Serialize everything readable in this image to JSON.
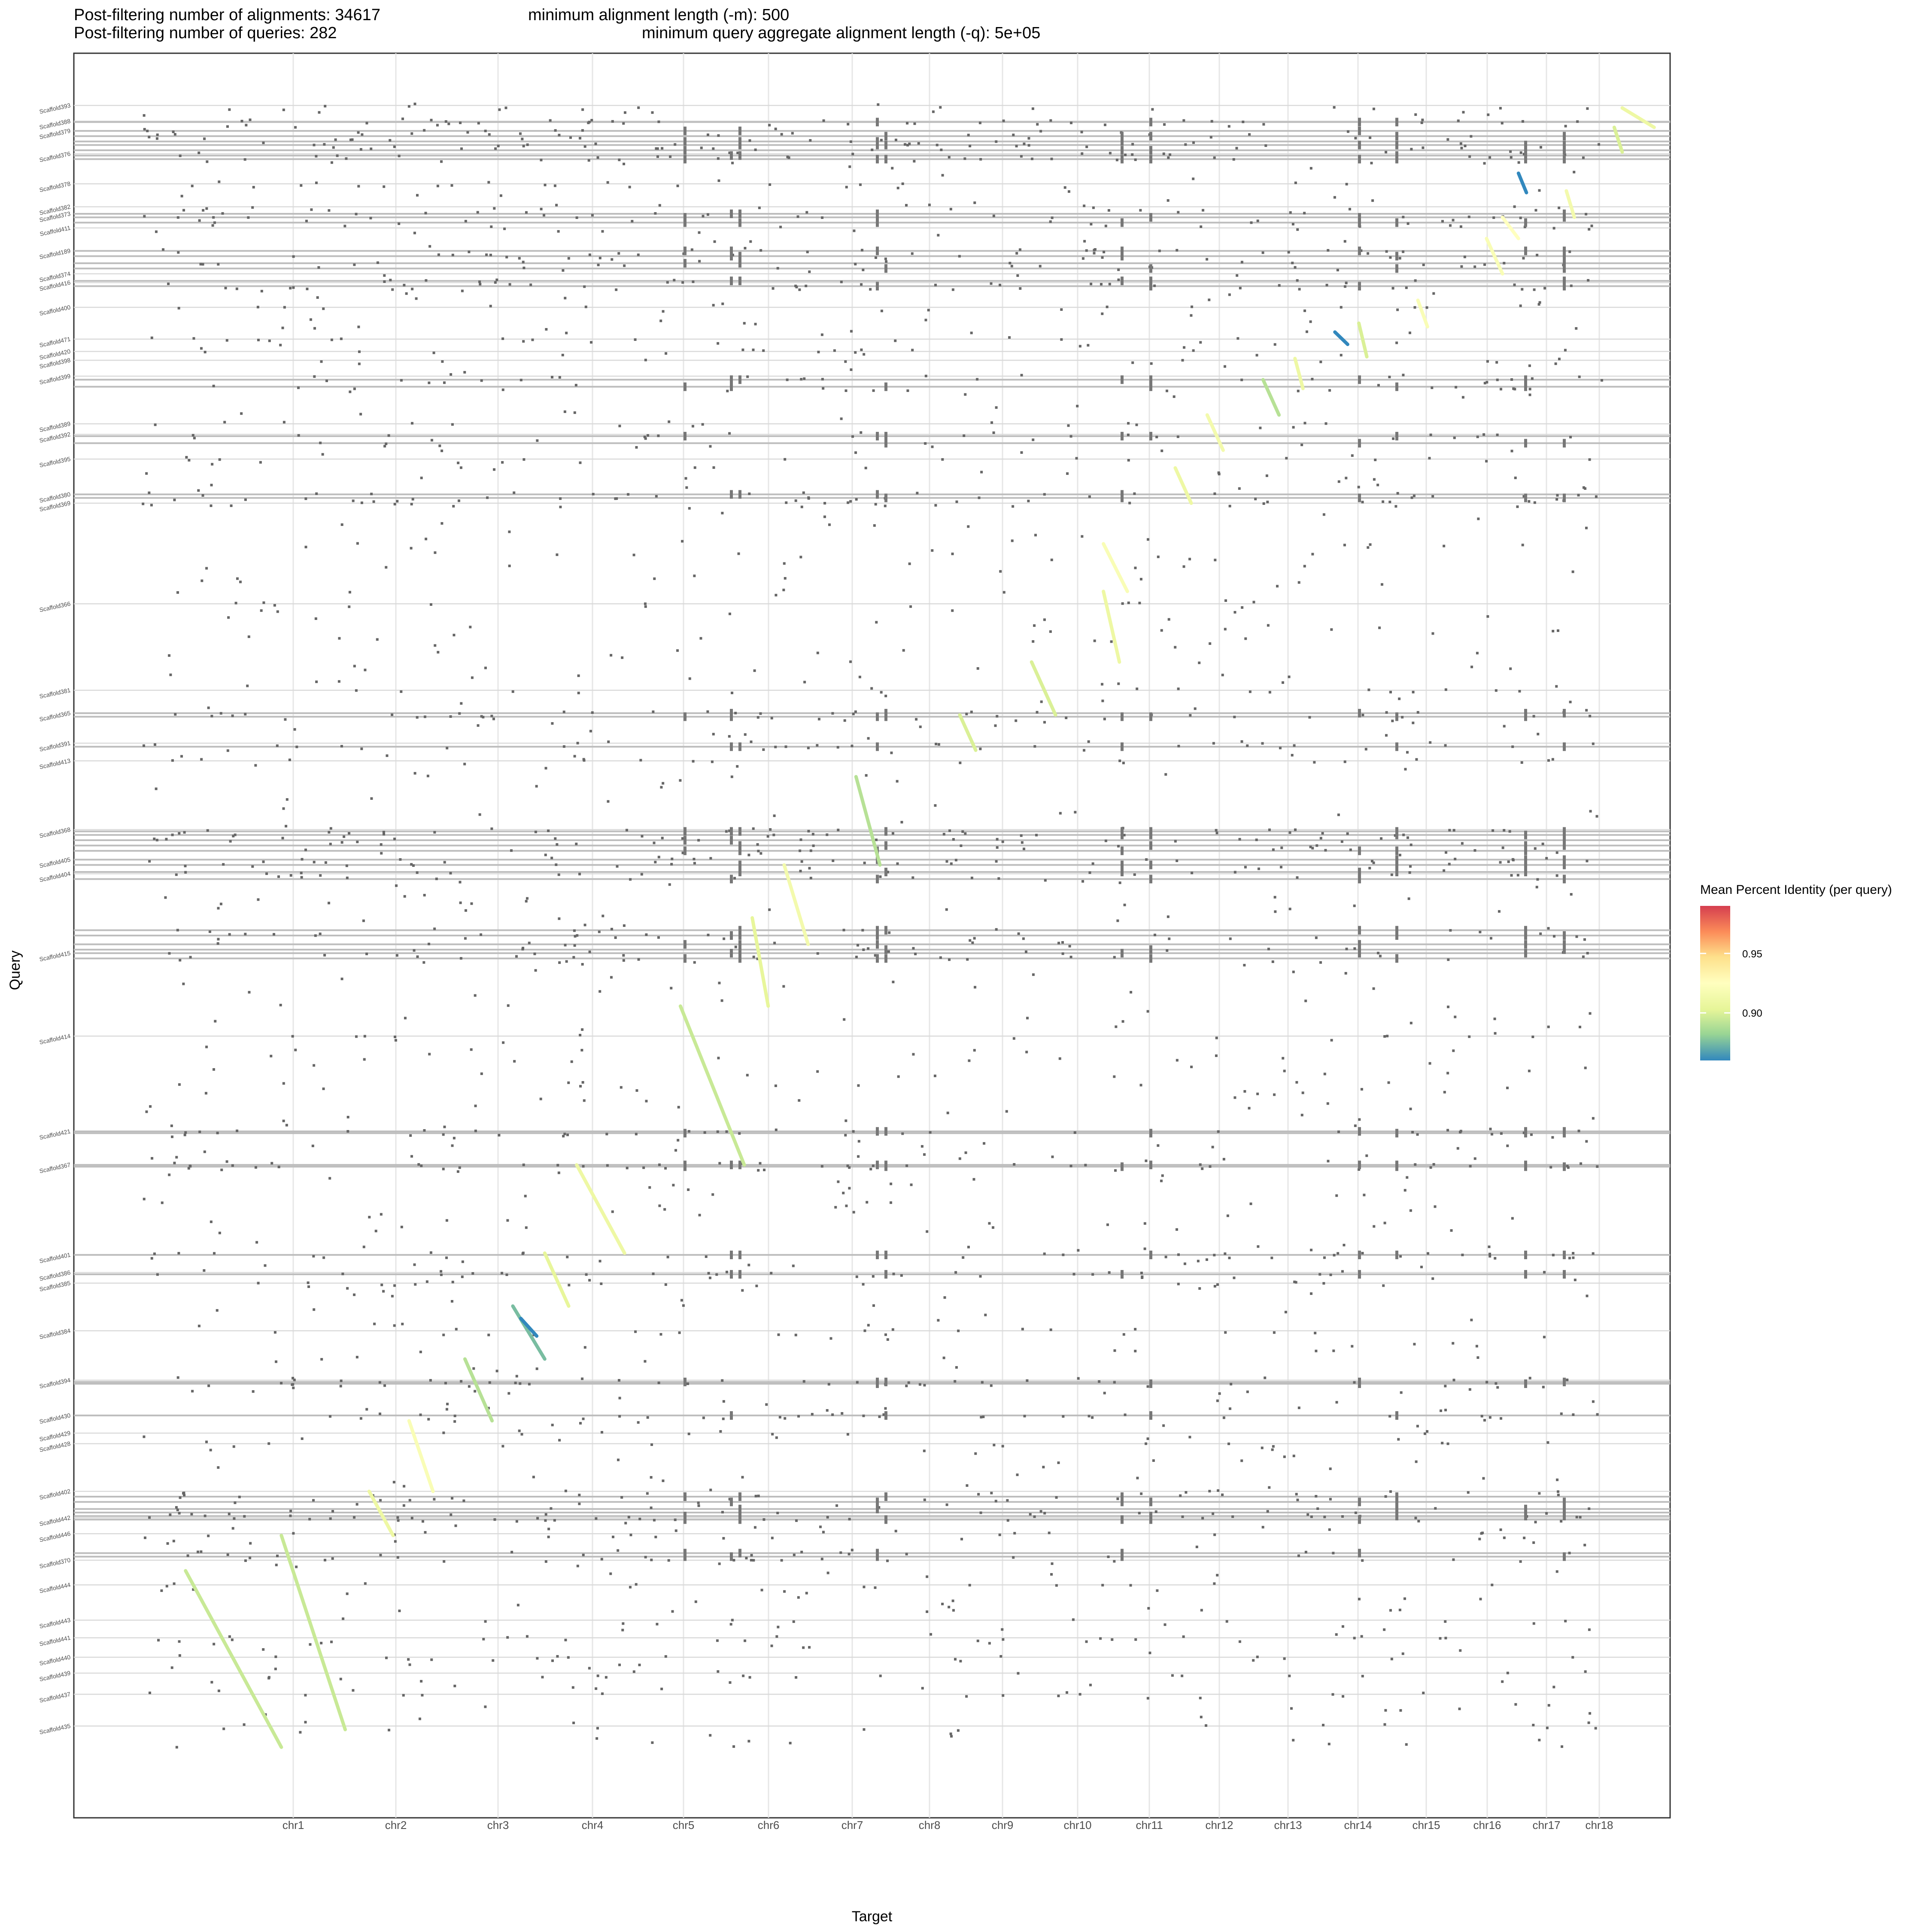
{
  "header": {
    "alignments": "Post-filtering number of alignments: 34617",
    "queries": "Post-filtering number of queries: 282",
    "min_len": "minimum alignment length (-m): 500",
    "min_agg": "minimum query aggregate alignment length (-q): 5e+05"
  },
  "chart_data": {
    "type": "scatter",
    "xlabel": "Target",
    "ylabel": "Query",
    "x_categories": [
      "chr1",
      "chr2",
      "chr3",
      "chr4",
      "chr5",
      "chr6",
      "chr7",
      "chr8",
      "chr9",
      "chr10",
      "chr11",
      "chr12",
      "chr13",
      "chr14",
      "chr15",
      "chr16",
      "chr17",
      "chr18"
    ],
    "y_ticks": [
      {
        "label": "Scaffold393",
        "y": 0.0296
      },
      {
        "label": "Scaffold388",
        "y": 0.0385
      },
      {
        "label": "Scaffold379",
        "y": 0.044
      },
      {
        "label": "Scaffold376",
        "y": 0.057
      },
      {
        "label": "Scaffold378",
        "y": 0.074
      },
      {
        "label": "Scaffold382",
        "y": 0.087
      },
      {
        "label": "Scaffold373",
        "y": 0.091
      },
      {
        "label": "Scaffold411",
        "y": 0.099
      },
      {
        "label": "Scaffold189",
        "y": 0.112
      },
      {
        "label": "Scaffold374",
        "y": 0.125
      },
      {
        "label": "Scaffold416",
        "y": 0.13
      },
      {
        "label": "Scaffold400",
        "y": 0.144
      },
      {
        "label": "Scaffold471",
        "y": 0.162
      },
      {
        "label": "Scaffold420",
        "y": 0.169
      },
      {
        "label": "Scaffold398",
        "y": 0.174
      },
      {
        "label": "Scaffold399",
        "y": 0.183
      },
      {
        "label": "Scaffold389",
        "y": 0.21
      },
      {
        "label": "Scaffold392",
        "y": 0.216
      },
      {
        "label": "Scaffold395",
        "y": 0.23
      },
      {
        "label": "Scaffold380",
        "y": 0.25
      },
      {
        "label": "Scaffold369",
        "y": 0.255
      },
      {
        "label": "Scaffold366",
        "y": 0.312
      },
      {
        "label": "Scaffold381",
        "y": 0.361
      },
      {
        "label": "Scaffold365",
        "y": 0.374
      },
      {
        "label": "Scaffold391",
        "y": 0.391
      },
      {
        "label": "Scaffold413",
        "y": 0.401
      },
      {
        "label": "Scaffold368",
        "y": 0.44
      },
      {
        "label": "Scaffold405",
        "y": 0.457
      },
      {
        "label": "Scaffold404",
        "y": 0.465
      },
      {
        "label": "Scaffold415",
        "y": 0.51
      },
      {
        "label": "Scaffold414",
        "y": 0.557
      },
      {
        "label": "Scaffold421",
        "y": 0.611
      },
      {
        "label": "Scaffold367",
        "y": 0.63
      },
      {
        "label": "Scaffold401",
        "y": 0.681
      },
      {
        "label": "Scaffold386",
        "y": 0.691
      },
      {
        "label": "Scaffold385",
        "y": 0.697
      },
      {
        "label": "Scaffold384",
        "y": 0.724
      },
      {
        "label": "Scaffold394",
        "y": 0.752
      },
      {
        "label": "Scaffold430",
        "y": 0.772
      },
      {
        "label": "Scaffold429",
        "y": 0.782
      },
      {
        "label": "Scaffold428",
        "y": 0.788
      },
      {
        "label": "Scaffold402",
        "y": 0.815
      },
      {
        "label": "Scaffold442",
        "y": 0.83
      },
      {
        "label": "Scaffold446",
        "y": 0.839
      },
      {
        "label": "Scaffold370",
        "y": 0.854
      },
      {
        "label": "Scaffold444",
        "y": 0.868
      },
      {
        "label": "Scaffold443",
        "y": 0.888
      },
      {
        "label": "Scaffold441",
        "y": 0.898
      },
      {
        "label": "Scaffold440",
        "y": 0.909
      },
      {
        "label": "Scaffold439",
        "y": 0.918
      },
      {
        "label": "Scaffold437",
        "y": 0.93
      },
      {
        "label": "Scaffold435",
        "y": 0.948
      }
    ],
    "dense_rows": [
      0.039,
      0.044,
      0.047,
      0.05,
      0.052,
      0.055,
      0.058,
      0.06,
      0.091,
      0.093,
      0.096,
      0.112,
      0.115,
      0.119,
      0.122,
      0.129,
      0.132,
      0.185,
      0.189,
      0.217,
      0.221,
      0.25,
      0.252,
      0.374,
      0.376,
      0.393,
      0.441,
      0.443,
      0.446,
      0.449,
      0.452,
      0.457,
      0.46,
      0.464,
      0.468,
      0.497,
      0.5,
      0.505,
      0.508,
      0.51,
      0.513,
      0.611,
      0.612,
      0.63,
      0.631,
      0.681,
      0.692,
      0.753,
      0.754,
      0.772,
      0.818,
      0.821,
      0.825,
      0.827,
      0.829,
      0.831,
      0.85,
      0.852
    ],
    "diagonal_segments": [
      {
        "x0": 0.97,
        "x1": 0.99,
        "y0": 0.031,
        "y1": 0.042,
        "identity": 0.91
      },
      {
        "x0": 0.965,
        "x1": 0.97,
        "y0": 0.042,
        "y1": 0.056,
        "identity": 0.9
      },
      {
        "x0": 0.935,
        "x1": 0.94,
        "y0": 0.078,
        "y1": 0.093,
        "identity": 0.915
      },
      {
        "x0": 0.905,
        "x1": 0.91,
        "y0": 0.068,
        "y1": 0.079,
        "identity": 0.86
      },
      {
        "x0": 0.895,
        "x1": 0.905,
        "y0": 0.093,
        "y1": 0.105,
        "identity": 0.925
      },
      {
        "x0": 0.885,
        "x1": 0.895,
        "y0": 0.105,
        "y1": 0.125,
        "identity": 0.92
      },
      {
        "x0": 0.842,
        "x1": 0.848,
        "y0": 0.14,
        "y1": 0.155,
        "identity": 0.92
      },
      {
        "x0": 0.805,
        "x1": 0.81,
        "y0": 0.153,
        "y1": 0.172,
        "identity": 0.9
      },
      {
        "x0": 0.79,
        "x1": 0.798,
        "y0": 0.158,
        "y1": 0.165,
        "identity": 0.86
      },
      {
        "x0": 0.765,
        "x1": 0.77,
        "y0": 0.173,
        "y1": 0.19,
        "identity": 0.91
      },
      {
        "x0": 0.745,
        "x1": 0.755,
        "y0": 0.185,
        "y1": 0.205,
        "identity": 0.89
      },
      {
        "x0": 0.71,
        "x1": 0.72,
        "y0": 0.205,
        "y1": 0.225,
        "identity": 0.915
      },
      {
        "x0": 0.69,
        "x1": 0.7,
        "y0": 0.235,
        "y1": 0.255,
        "identity": 0.91
      },
      {
        "x0": 0.645,
        "x1": 0.66,
        "y0": 0.278,
        "y1": 0.305,
        "identity": 0.92
      },
      {
        "x0": 0.645,
        "x1": 0.655,
        "y0": 0.305,
        "y1": 0.345,
        "identity": 0.91
      },
      {
        "x0": 0.6,
        "x1": 0.615,
        "y0": 0.345,
        "y1": 0.375,
        "identity": 0.9
      },
      {
        "x0": 0.555,
        "x1": 0.565,
        "y0": 0.375,
        "y1": 0.395,
        "identity": 0.9
      },
      {
        "x0": 0.49,
        "x1": 0.505,
        "y0": 0.41,
        "y1": 0.46,
        "identity": 0.89
      },
      {
        "x0": 0.445,
        "x1": 0.46,
        "y0": 0.46,
        "y1": 0.505,
        "identity": 0.915
      },
      {
        "x0": 0.425,
        "x1": 0.435,
        "y0": 0.49,
        "y1": 0.54,
        "identity": 0.905
      },
      {
        "x0": 0.38,
        "x1": 0.42,
        "y0": 0.54,
        "y1": 0.63,
        "identity": 0.895
      },
      {
        "x0": 0.315,
        "x1": 0.345,
        "y0": 0.63,
        "y1": 0.68,
        "identity": 0.91
      },
      {
        "x0": 0.295,
        "x1": 0.31,
        "y0": 0.68,
        "y1": 0.71,
        "identity": 0.905
      },
      {
        "x0": 0.275,
        "x1": 0.295,
        "y0": 0.71,
        "y1": 0.74,
        "identity": 0.875
      },
      {
        "x0": 0.28,
        "x1": 0.29,
        "y0": 0.717,
        "y1": 0.727,
        "identity": 0.86
      },
      {
        "x0": 0.245,
        "x1": 0.262,
        "y0": 0.74,
        "y1": 0.775,
        "identity": 0.89
      },
      {
        "x0": 0.21,
        "x1": 0.225,
        "y0": 0.775,
        "y1": 0.815,
        "identity": 0.92
      },
      {
        "x0": 0.185,
        "x1": 0.2,
        "y0": 0.815,
        "y1": 0.84,
        "identity": 0.91
      },
      {
        "x0": 0.13,
        "x1": 0.17,
        "y0": 0.84,
        "y1": 0.95,
        "identity": 0.895
      },
      {
        "x0": 0.07,
        "x1": 0.13,
        "y0": 0.86,
        "y1": 0.96,
        "identity": 0.895
      }
    ],
    "identity_scale": {
      "min": 0.86,
      "max": 0.99,
      "ticks": [
        0.9,
        0.95
      ],
      "colors": [
        "#3288bd",
        "#99d594",
        "#e6f598",
        "#ffffbf",
        "#fee08b",
        "#fc8d59",
        "#d53e4f"
      ]
    },
    "legend_title": "Mean Percent Identity (per query)",
    "legend_position": "right",
    "grid": true
  }
}
